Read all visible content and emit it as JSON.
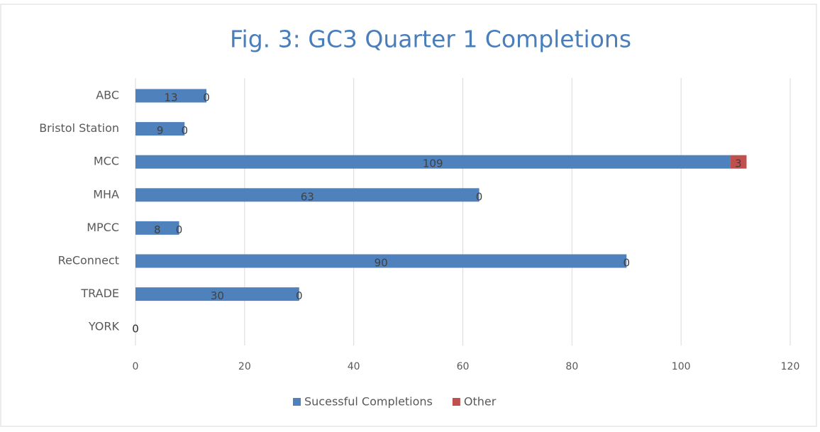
{
  "chart_data": {
    "type": "stacked-bar-horizontal",
    "title": "Fig. 3: GC3 Quarter 1 Completions",
    "categories": [
      "ABC",
      "Bristol Station",
      "MCC",
      "MHA",
      "MPCC",
      "ReConnect",
      "TRADE",
      "YORK"
    ],
    "series": [
      {
        "name": "Sucessful Completions",
        "color": "#4f81bd",
        "values": [
          13,
          9,
          109,
          63,
          8,
          90,
          30,
          0
        ]
      },
      {
        "name": "Other",
        "color": "#c0504d",
        "values": [
          0,
          0,
          3,
          0,
          0,
          0,
          0,
          0
        ]
      }
    ],
    "xlim": [
      0,
      120
    ],
    "xticks": [
      0,
      20,
      40,
      60,
      80,
      100,
      120
    ],
    "grid": true,
    "legend": "bottom"
  }
}
